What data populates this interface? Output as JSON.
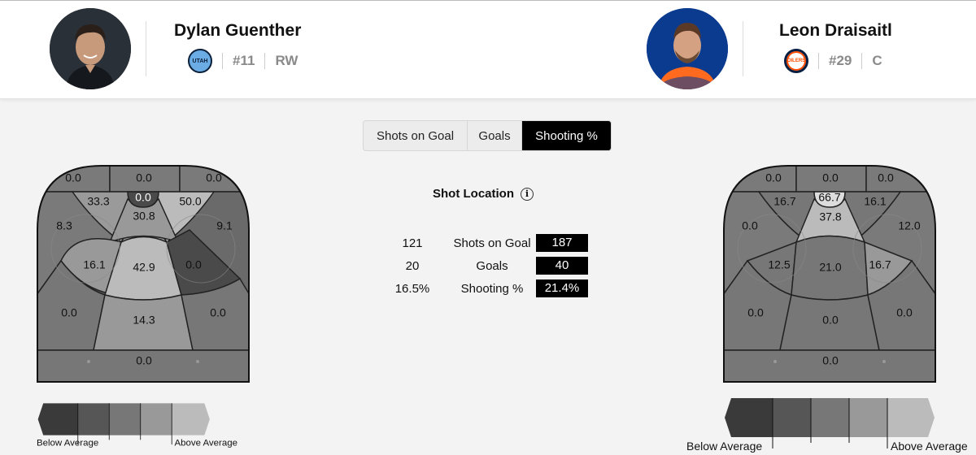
{
  "players": [
    {
      "name": "Dylan Guenther",
      "team_logo_text": "UTAH",
      "team_colors": {
        "primary": "#6CACE4",
        "secondary": "#0B1F3A"
      },
      "number": "#11",
      "position": "RW"
    },
    {
      "name": "Leon Draisaitl",
      "team_logo_text": "OILERS",
      "team_colors": {
        "primary": "#041E42",
        "secondary": "#FF4C00"
      },
      "number": "#29",
      "position": "C"
    }
  ],
  "tabs": [
    {
      "label": "Shots on Goal",
      "active": false
    },
    {
      "label": "Goals",
      "active": false
    },
    {
      "label": "Shooting %",
      "active": true
    }
  ],
  "shot_location": {
    "title": "Shot Location",
    "info_icon": "info-icon"
  },
  "stats": [
    {
      "left": "121",
      "label": "Shots on Goal",
      "right": "187"
    },
    {
      "left": "20",
      "label": "Goals",
      "right": "40"
    },
    {
      "left": "16.5%",
      "label": "Shooting %",
      "right": "21.4%"
    }
  ],
  "left_zones": {
    "top_left": "0.0",
    "top_mid": "0.0",
    "top_right": "0.0",
    "crease": "0.0",
    "slot_left_top": "33.3",
    "slot_right_top": "50.0",
    "high_slot": "30.8",
    "left_circle": "8.3",
    "right_circle": "9.1",
    "left_inner": "16.1",
    "slot": "42.9",
    "right_inner": "0.0",
    "left_point": "0.0",
    "mid_point": "14.3",
    "right_point": "0.0",
    "blue_line": "0.0"
  },
  "right_zones": {
    "top_left": "0.0",
    "top_mid": "0.0",
    "top_right": "0.0",
    "crease": "66.7",
    "slot_left_top": "16.7",
    "slot_right_top": "16.1",
    "high_slot": "37.8",
    "left_circle": "0.0",
    "right_circle": "12.0",
    "left_inner": "12.5",
    "slot": "21.0",
    "right_inner": "16.7",
    "left_point": "0.0",
    "mid_point": "0.0",
    "right_point": "0.0",
    "blue_line": "0.0"
  },
  "legend": {
    "below": "Below Average",
    "above": "Above Average"
  },
  "colors": {
    "active_tab": "#000000",
    "scale": [
      "#3a3a3a",
      "#565656",
      "#777777",
      "#999999",
      "#bbbbbb"
    ]
  }
}
